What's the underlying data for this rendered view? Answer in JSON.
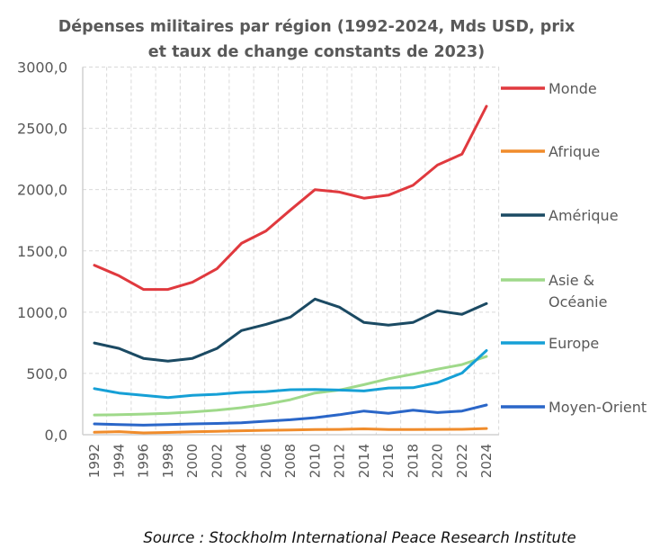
{
  "chart_data": {
    "type": "line",
    "title_lines": [
      "Dépenses militaires par région (1992-2024, Mds USD, prix",
      "et taux de change constants de 2023)"
    ],
    "xlabel": "",
    "ylabel": "",
    "ylim": [
      0,
      3000
    ],
    "yticks": [
      0,
      500,
      1000,
      1500,
      2000,
      2500,
      3000
    ],
    "ytick_labels": [
      "0,0",
      "500,0",
      "1000,0",
      "1500,0",
      "2000,0",
      "2500,0",
      "3000,0"
    ],
    "x": [
      1992,
      1994,
      1996,
      1998,
      2000,
      2002,
      2004,
      2006,
      2008,
      2010,
      2012,
      2014,
      2016,
      2018,
      2020,
      2022,
      2024
    ],
    "xtick_labels": [
      "1992",
      "1994",
      "1996",
      "1998",
      "2000",
      "2002",
      "2004",
      "2006",
      "2008",
      "2010",
      "2012",
      "2014",
      "2016",
      "2018",
      "2020",
      "2022",
      "2024"
    ],
    "grid": true,
    "legend_position": "right",
    "series": [
      {
        "name": "Monde",
        "color": "#e0393e",
        "values": [
          1383,
          1297,
          1185,
          1185,
          1244,
          1354,
          1561,
          1663,
          1834,
          2000,
          1980,
          1930,
          1955,
          2035,
          2200,
          2290,
          2680
        ]
      },
      {
        "name": "Afrique",
        "color": "#f08c2b",
        "values": [
          20,
          25,
          15,
          18,
          24,
          28,
          32,
          36,
          39,
          42,
          43,
          48,
          42,
          42,
          43,
          44,
          51
        ]
      },
      {
        "name": "Amérique",
        "color": "#1b4a63",
        "values": [
          748,
          704,
          623,
          601,
          623,
          704,
          850,
          900,
          960,
          1107,
          1041,
          916,
          894,
          916,
          1011,
          982,
          1070
        ]
      },
      {
        "name": "Asie & Océanie",
        "color": "#9fd98a",
        "values": [
          161,
          163,
          168,
          175,
          185,
          200,
          220,
          248,
          286,
          340,
          364,
          408,
          457,
          494,
          535,
          572,
          638
        ]
      },
      {
        "name": "Europe",
        "color": "#16a0d6",
        "values": [
          376,
          340,
          322,
          303,
          322,
          330,
          345,
          352,
          367,
          369,
          364,
          357,
          381,
          383,
          425,
          503,
          687
        ]
      },
      {
        "name": "Moyen-Orient",
        "color": "#2a66c8",
        "values": [
          88,
          82,
          78,
          82,
          88,
          92,
          97,
          110,
          122,
          139,
          163,
          193,
          174,
          200,
          181,
          193,
          242
        ]
      }
    ],
    "legend_labels": [
      [
        "Monde"
      ],
      [
        "Afrique"
      ],
      [
        "Amérique"
      ],
      [
        "Asie &",
        "Océanie"
      ],
      [
        "Europe"
      ],
      [
        "Moyen-Orient"
      ]
    ],
    "source": "Source : Stockholm International Peace Research Institute"
  }
}
